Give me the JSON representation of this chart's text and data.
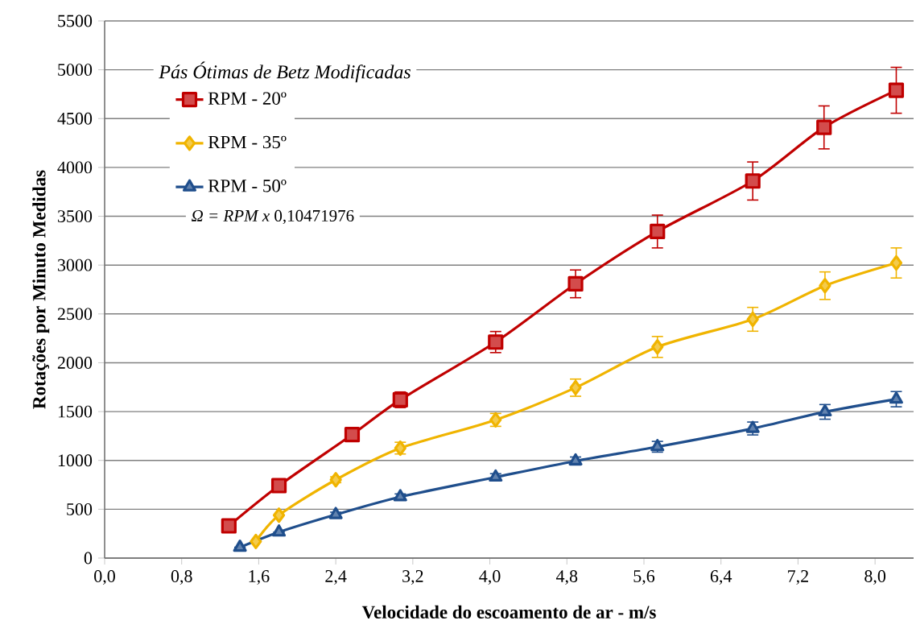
{
  "chart_data": {
    "type": "line",
    "xlabel": "Velocidade do escoamento de ar - m/s",
    "ylabel": "Rotações por Minuto Medidas",
    "legend_title": "Pás Ótimas de Betz Modificadas",
    "annotations": [
      "*Ω = RPM x* 0,10471976"
    ],
    "xlim": [
      0,
      8.4
    ],
    "xticks": [
      {
        "value": 0,
        "label": "0,0"
      },
      {
        "value": 0.8,
        "label": "0,8"
      },
      {
        "value": 1.6,
        "label": "1,6"
      },
      {
        "value": 2.4,
        "label": "2,4"
      },
      {
        "value": 3.2,
        "label": "3,2"
      },
      {
        "value": 4.0,
        "label": "4,0"
      },
      {
        "value": 4.8,
        "label": "4,8"
      },
      {
        "value": 5.6,
        "label": "5,6"
      },
      {
        "value": 6.4,
        "label": "6,4"
      },
      {
        "value": 7.2,
        "label": "7,2"
      },
      {
        "value": 8.0,
        "label": "8,0"
      }
    ],
    "ylim": [
      0,
      5500
    ],
    "yticks": [
      0,
      500,
      1000,
      1500,
      2000,
      2500,
      3000,
      3500,
      4000,
      4500,
      5000,
      5500
    ],
    "grid": "y",
    "legend": "top left",
    "line_style": "solid",
    "series": [
      {
        "name": "RPM - 20º",
        "color": "#c00000",
        "marker": "square",
        "x": [
          1.29,
          1.81,
          2.57,
          3.07,
          4.06,
          4.89,
          5.74,
          6.73,
          7.47,
          8.22
        ],
        "values": [
          330,
          742,
          1264,
          1621,
          2212,
          2808,
          3344,
          3861,
          4410,
          4790
        ],
        "errors": [
          null,
          null,
          null,
          80,
          108,
          142,
          168,
          195,
          220,
          235
        ]
      },
      {
        "name": "RPM - 35º",
        "color": "#f0b400",
        "marker": "diamond",
        "x": [
          1.57,
          1.81,
          2.4,
          3.07,
          4.06,
          4.89,
          5.74,
          6.73,
          7.48,
          8.22
        ],
        "values": [
          170,
          439,
          802,
          1126,
          1415,
          1745,
          2162,
          2445,
          2789,
          3022
        ],
        "errors": [
          null,
          null,
          30,
          60,
          66,
          88,
          107,
          122,
          141,
          154
        ]
      },
      {
        "name": "RPM - 50º",
        "color": "#1f4e8c",
        "marker": "triangle",
        "x": [
          1.405,
          1.81,
          2.4,
          3.07,
          4.06,
          4.89,
          5.74,
          6.73,
          7.48,
          8.22
        ],
        "values": [
          110,
          266,
          445,
          627,
          829,
          994,
          1140,
          1327,
          1497,
          1627
        ],
        "errors": [
          null,
          null,
          25,
          30,
          35,
          41,
          55,
          66,
          75,
          78
        ]
      }
    ]
  }
}
